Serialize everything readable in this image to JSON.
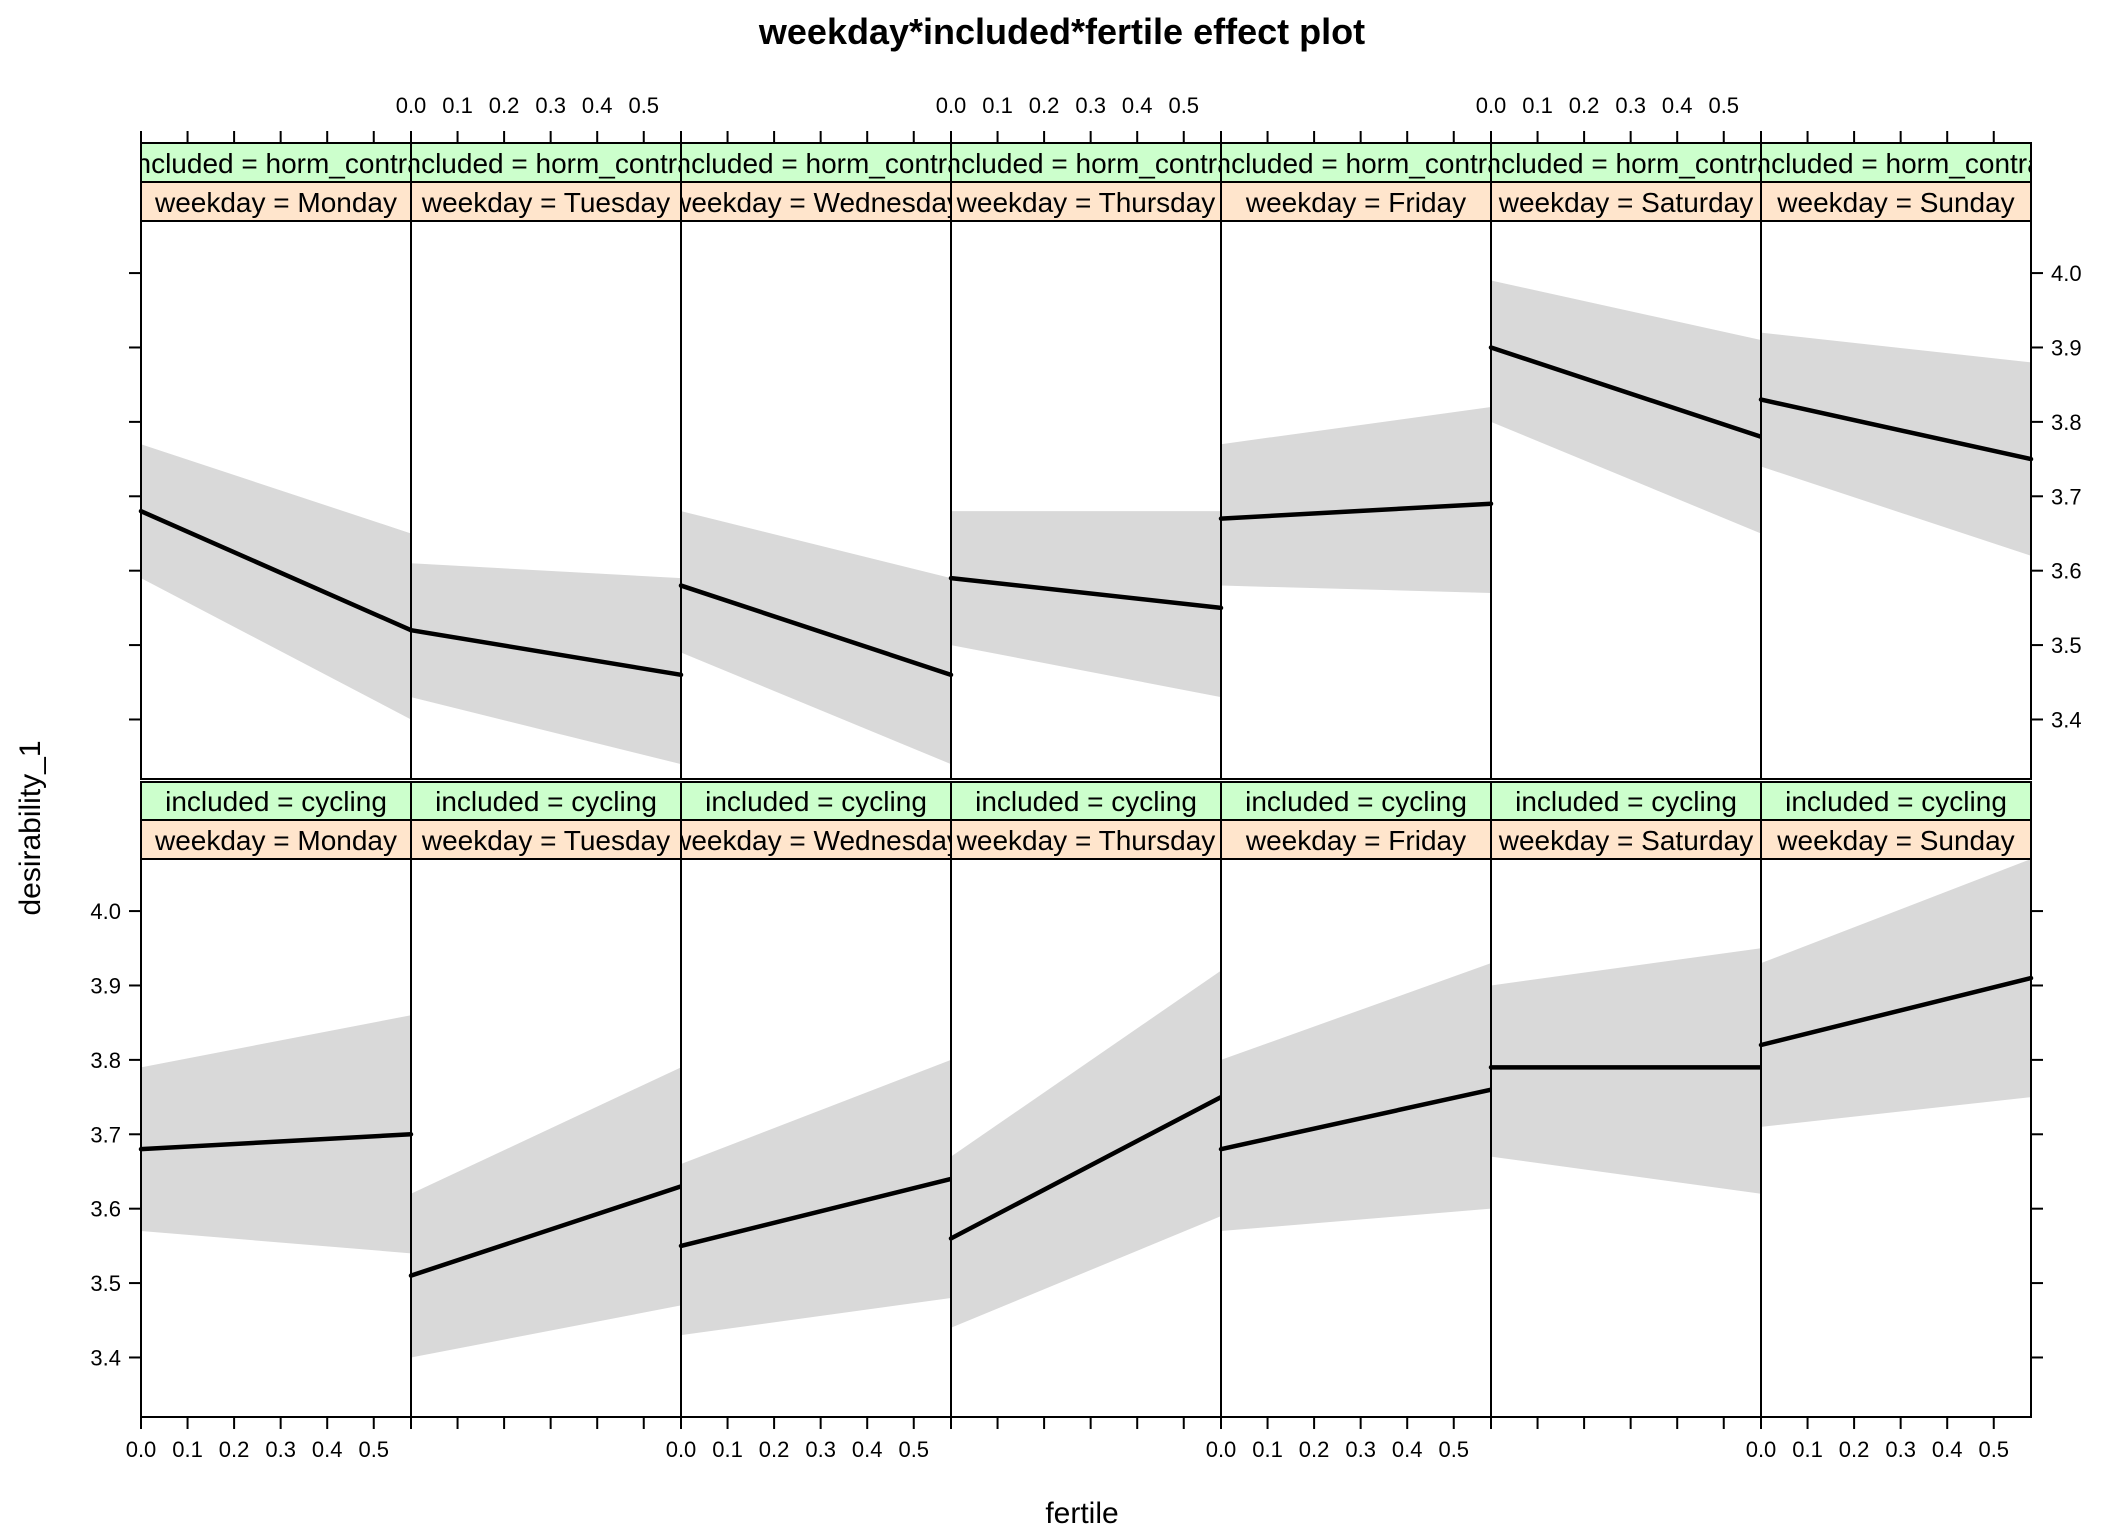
{
  "chart_data": {
    "type": "line",
    "title": "weekday*included*fertile effect plot",
    "xlabel": "fertile",
    "ylabel": "desirability_1",
    "xlim": [
      0,
      0.58
    ],
    "ylim": [
      3.32,
      4.07
    ],
    "x_ticks": [
      0.0,
      0.1,
      0.2,
      0.3,
      0.4,
      0.5
    ],
    "x_tick_labels": [
      "0.0",
      "0.1",
      "0.2",
      "0.3",
      "0.4",
      "0.5"
    ],
    "y_ticks": [
      3.4,
      3.5,
      3.6,
      3.7,
      3.8,
      3.9,
      4.0
    ],
    "y_tick_labels": [
      "3.4",
      "3.5",
      "3.6",
      "3.7",
      "3.8",
      "3.9",
      "4.0"
    ],
    "strip_colors": {
      "included": "#ccffcc",
      "weekday": "#ffe5cc"
    },
    "band_color": "#d9d9d9",
    "line_color": "#000000",
    "panels": [
      {
        "included": "included = horm_contra",
        "weekday": "weekday = Monday",
        "x": [
          0,
          0.58
        ],
        "fit": [
          3.68,
          3.52
        ],
        "lower": [
          3.59,
          3.4
        ],
        "upper": [
          3.77,
          3.65
        ]
      },
      {
        "included": "included = horm_contra",
        "weekday": "weekday = Tuesday",
        "x": [
          0,
          0.58
        ],
        "fit": [
          3.52,
          3.46
        ],
        "lower": [
          3.43,
          3.34
        ],
        "upper": [
          3.61,
          3.59
        ]
      },
      {
        "included": "included = horm_contra",
        "weekday": "weekday = Wednesday",
        "x": [
          0,
          0.58
        ],
        "fit": [
          3.58,
          3.46
        ],
        "lower": [
          3.49,
          3.34
        ],
        "upper": [
          3.68,
          3.59
        ]
      },
      {
        "included": "included = horm_contra",
        "weekday": "weekday = Thursday",
        "x": [
          0,
          0.58
        ],
        "fit": [
          3.59,
          3.55
        ],
        "lower": [
          3.5,
          3.43
        ],
        "upper": [
          3.68,
          3.68
        ]
      },
      {
        "included": "included = horm_contra",
        "weekday": "weekday = Friday",
        "x": [
          0,
          0.58
        ],
        "fit": [
          3.67,
          3.69
        ],
        "lower": [
          3.58,
          3.57
        ],
        "upper": [
          3.77,
          3.82
        ]
      },
      {
        "included": "included = horm_contra",
        "weekday": "weekday = Saturday",
        "x": [
          0,
          0.58
        ],
        "fit": [
          3.9,
          3.78
        ],
        "lower": [
          3.8,
          3.65
        ],
        "upper": [
          3.99,
          3.91
        ]
      },
      {
        "included": "included = horm_contra",
        "weekday": "weekday = Sunday",
        "x": [
          0,
          0.58
        ],
        "fit": [
          3.83,
          3.75
        ],
        "lower": [
          3.74,
          3.62
        ],
        "upper": [
          3.92,
          3.88
        ]
      },
      {
        "included": "included = cycling",
        "weekday": "weekday = Monday",
        "x": [
          0,
          0.58
        ],
        "fit": [
          3.68,
          3.7
        ],
        "lower": [
          3.57,
          3.54
        ],
        "upper": [
          3.79,
          3.86
        ]
      },
      {
        "included": "included = cycling",
        "weekday": "weekday = Tuesday",
        "x": [
          0,
          0.58
        ],
        "fit": [
          3.51,
          3.63
        ],
        "lower": [
          3.4,
          3.47
        ],
        "upper": [
          3.62,
          3.79
        ]
      },
      {
        "included": "included = cycling",
        "weekday": "weekday = Wednesday",
        "x": [
          0,
          0.58
        ],
        "fit": [
          3.55,
          3.64
        ],
        "lower": [
          3.43,
          3.48
        ],
        "upper": [
          3.66,
          3.8
        ]
      },
      {
        "included": "included = cycling",
        "weekday": "weekday = Thursday",
        "x": [
          0,
          0.58
        ],
        "fit": [
          3.56,
          3.75
        ],
        "lower": [
          3.44,
          3.59
        ],
        "upper": [
          3.67,
          3.92
        ]
      },
      {
        "included": "included = cycling",
        "weekday": "weekday = Friday",
        "x": [
          0,
          0.58
        ],
        "fit": [
          3.68,
          3.76
        ],
        "lower": [
          3.57,
          3.6
        ],
        "upper": [
          3.8,
          3.93
        ]
      },
      {
        "included": "included = cycling",
        "weekday": "weekday = Saturday",
        "x": [
          0,
          0.58
        ],
        "fit": [
          3.79,
          3.79
        ],
        "lower": [
          3.67,
          3.62
        ],
        "upper": [
          3.9,
          3.95
        ]
      },
      {
        "included": "included = cycling",
        "weekday": "weekday = Sunday",
        "x": [
          0,
          0.58
        ],
        "fit": [
          3.82,
          3.91
        ],
        "lower": [
          3.71,
          3.75
        ],
        "upper": [
          3.93,
          4.07
        ]
      }
    ]
  }
}
